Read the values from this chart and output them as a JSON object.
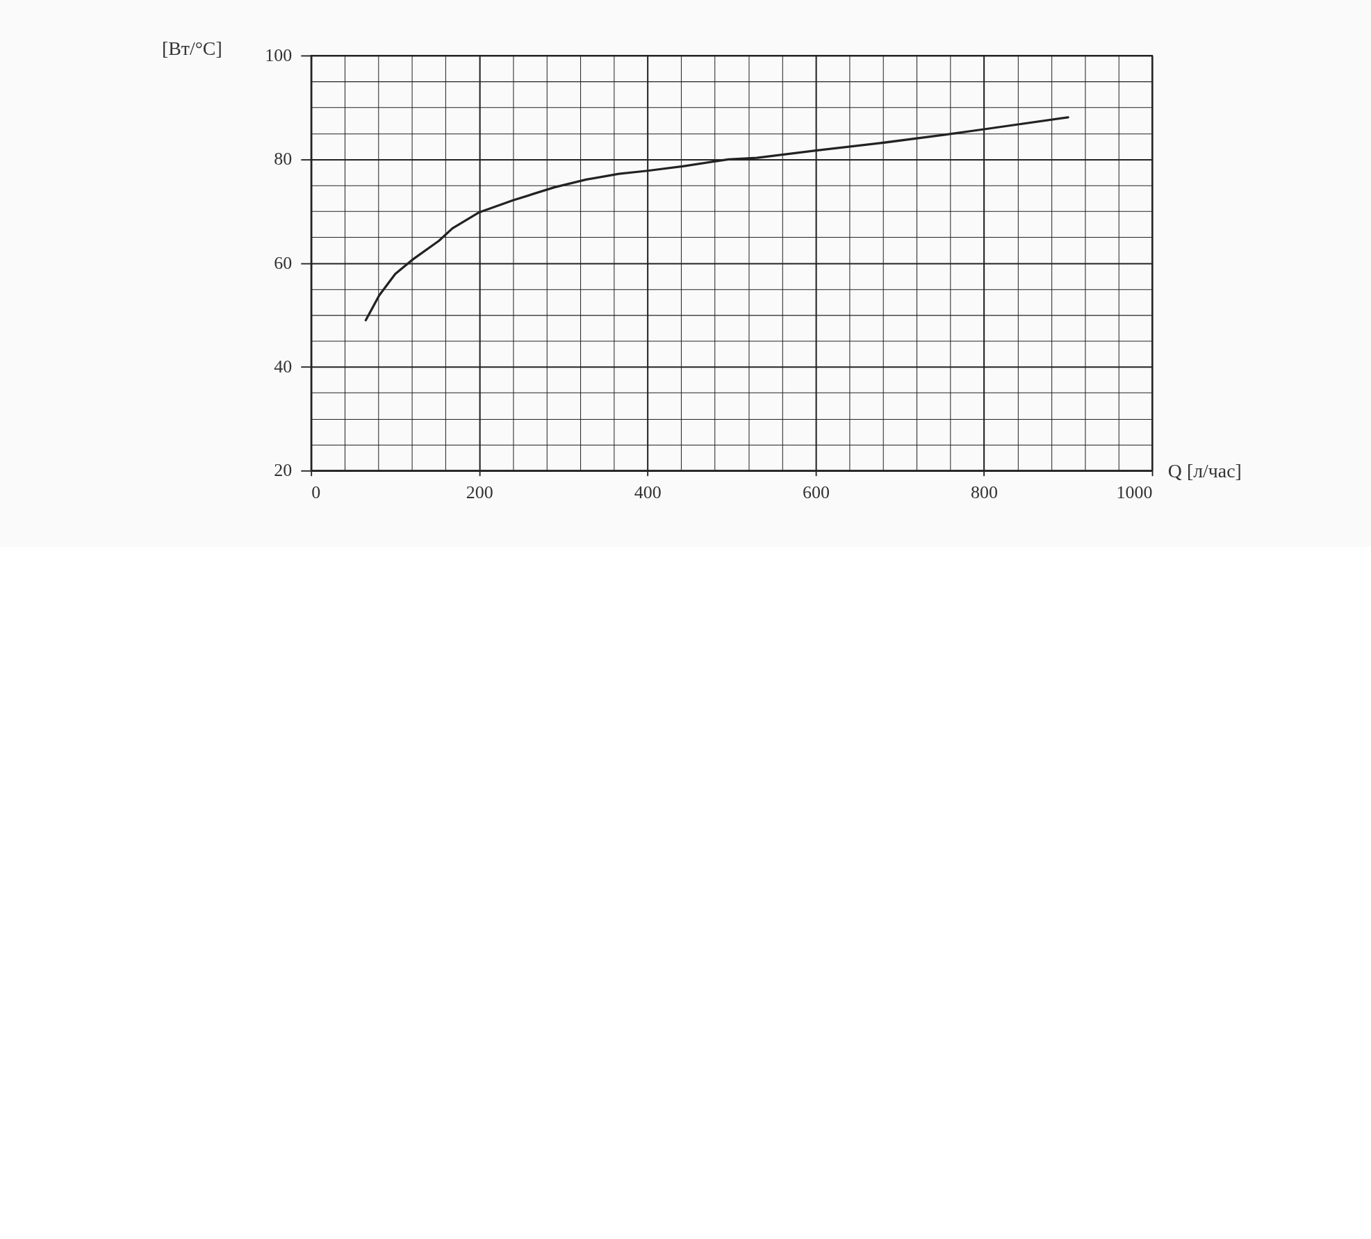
{
  "chart_data": {
    "type": "line",
    "xlabel": "Q [л/час]",
    "ylabel": "[Вт/°C]",
    "x": [
      65,
      81,
      100,
      120,
      152,
      168,
      200,
      240,
      289,
      327,
      366,
      400,
      443,
      496,
      530,
      600,
      675,
      752,
      800,
      900
    ],
    "series": [
      {
        "color": "#222222",
        "values": [
          49.0,
          53.8,
          57.9,
          60.6,
          64.3,
          66.7,
          69.8,
          72.1,
          74.6,
          76.1,
          77.2,
          77.8,
          78.7,
          80.0,
          80.3,
          81.7,
          83.1,
          84.7,
          85.8,
          88.1
        ]
      }
    ],
    "xlim": [
      0,
      1000
    ],
    "ylim": [
      20,
      100
    ],
    "xticks": [
      0,
      {
        "value": 40,
        "label": null
      },
      {
        "value": 80,
        "label": null
      },
      {
        "value": 120,
        "label": null
      },
      {
        "value": 160,
        "label": null
      },
      200,
      {
        "value": 240,
        "label": null
      },
      {
        "value": 280,
        "label": null
      },
      {
        "value": 320,
        "label": null
      },
      {
        "value": 360,
        "label": null
      },
      400,
      {
        "value": 440,
        "label": null
      },
      {
        "value": 480,
        "label": null
      },
      {
        "value": 520,
        "label": null
      },
      {
        "value": 560,
        "label": null
      },
      600,
      {
        "value": 640,
        "label": null
      },
      {
        "value": 680,
        "label": null
      },
      {
        "value": 720,
        "label": null
      },
      {
        "value": 760,
        "label": null
      },
      800,
      {
        "value": 840,
        "label": null
      },
      {
        "value": 880,
        "label": null
      },
      {
        "value": 920,
        "label": null
      },
      {
        "value": 960,
        "label": null
      },
      1000
    ],
    "yticks": [
      20,
      {
        "value": 25,
        "label": null
      },
      {
        "value": 30,
        "label": null
      },
      {
        "value": 35,
        "label": null
      },
      40,
      {
        "value": 45,
        "label": null
      },
      {
        "value": 50,
        "label": null
      },
      {
        "value": 55,
        "label": null
      },
      60,
      {
        "value": 65,
        "label": null
      },
      {
        "value": 70,
        "label": null
      },
      {
        "value": 75,
        "label": null
      },
      80,
      {
        "value": 85,
        "label": null
      },
      {
        "value": 90,
        "label": null
      },
      {
        "value": 95,
        "label": null
      },
      100
    ],
    "grid": true,
    "marker": "none",
    "line_style": "solid"
  }
}
